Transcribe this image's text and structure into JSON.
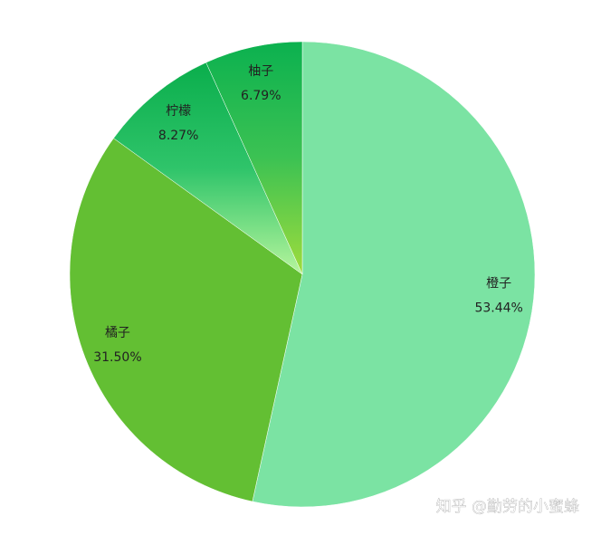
{
  "chart_data": {
    "type": "pie",
    "categories": [
      "橙子",
      "橘子",
      "柠檬",
      "柚子"
    ],
    "values": [
      53.44,
      31.5,
      8.27,
      6.79
    ],
    "value_labels": [
      "53.44%",
      "31.50%",
      "8.27%",
      "6.79%"
    ],
    "colors": [
      "#7be3a3",
      "#63bf33",
      "#0aae4c",
      "#0bb14f"
    ],
    "watermark": "知乎 @勤劳的小蜜蜂"
  }
}
